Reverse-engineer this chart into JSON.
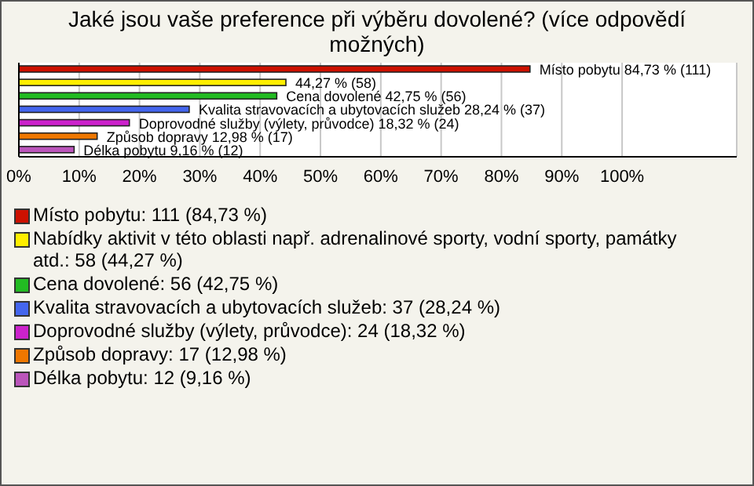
{
  "chart_data": {
    "type": "bar",
    "title": "Jaké jsou vaše preference při výběru dovolené? (více odpovědí možných)",
    "orientation": "horizontal",
    "stacked": true,
    "categories": [
      null,
      null,
      null,
      null,
      null,
      null,
      null
    ],
    "series": [
      {
        "name": "Místo pobytu: 111 (84,73 %)",
        "color": "#cc1100",
        "values": [
          84.73,
          null,
          null,
          null,
          null,
          null,
          null
        ],
        "value_labels": [
          "Místo pobytu 84,73 % (111)",
          null,
          null,
          null,
          null,
          null,
          null
        ]
      },
      {
        "name": "Nabídky aktivit v této oblasti např. adrenalinové sporty, vodní sporty, památky atd.: 58 (44,27 %)",
        "color": "#ffee00",
        "values": [
          null,
          44.27,
          null,
          null,
          null,
          null,
          null
        ],
        "value_labels": [
          null,
          "44,27 % (58)",
          null,
          null,
          null,
          null,
          null
        ]
      },
      {
        "name": "Cena dovolené: 56 (42,75 %)",
        "color": "#22bb22",
        "values": [
          null,
          null,
          42.75,
          null,
          null,
          null,
          null
        ],
        "value_labels": [
          null,
          null,
          "Cena dovolené 42,75 % (56)",
          null,
          null,
          null,
          null
        ]
      },
      {
        "name": "Kvalita stravovacích a ubytovacích služeb: 37 (28,24 %)",
        "color": "#4466ee",
        "values": [
          null,
          null,
          null,
          28.24,
          null,
          null,
          null
        ],
        "value_labels": [
          null,
          null,
          null,
          "Kvalita stravovacích a ubytovacích služeb 28,24 % (37)",
          null,
          null,
          null
        ]
      },
      {
        "name": "Doprovodné služby (výlety, průvodce): 24 (18,32 %)",
        "color": "#cc22cc",
        "values": [
          null,
          null,
          null,
          null,
          18.32,
          null,
          null
        ],
        "value_labels": [
          null,
          null,
          null,
          null,
          "Doprovodné služby (výlety, průvodce) 18,32 % (24)",
          null,
          null
        ]
      },
      {
        "name": "Způsob dopravy: 17 (12,98 %)",
        "color": "#ee7700",
        "values": [
          null,
          null,
          null,
          null,
          null,
          12.98,
          null
        ],
        "value_labels": [
          null,
          null,
          null,
          null,
          null,
          "Způsob dopravy 12,98 % (17)",
          null
        ]
      },
      {
        "name": "Délka pobytu: 12 (9,16 %)",
        "color": "#bb55bb",
        "values": [
          null,
          null,
          null,
          null,
          null,
          null,
          9.16
        ],
        "value_labels": [
          null,
          null,
          null,
          null,
          null,
          null,
          "Délka pobytu 9,16 % (12)"
        ]
      }
    ],
    "xlim": [
      0,
      119
    ],
    "xticks": [
      {
        "value": 0,
        "label": "0%"
      },
      {
        "value": 10,
        "label": "10%"
      },
      {
        "value": 20,
        "label": "20%"
      },
      {
        "value": 30,
        "label": "30%"
      },
      {
        "value": 40,
        "label": "40%"
      },
      {
        "value": 50,
        "label": "50%"
      },
      {
        "value": 60,
        "label": "60%"
      },
      {
        "value": 70,
        "label": "70%"
      },
      {
        "value": 80,
        "label": "80%"
      },
      {
        "value": 90,
        "label": "90%"
      },
      {
        "value": 100,
        "label": "100%"
      }
    ],
    "tick_labels": "x",
    "grid": "x",
    "legend": "bottom"
  }
}
